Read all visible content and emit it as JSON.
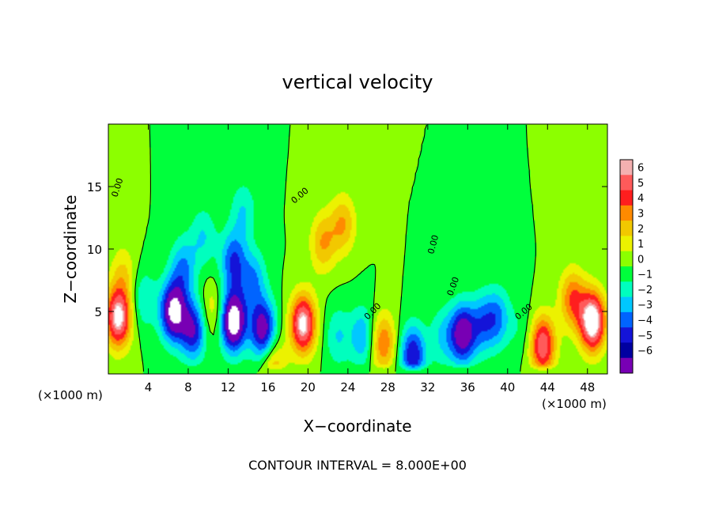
{
  "chart_data": {
    "type": "heatmap",
    "title": "vertical velocity",
    "xlabel": "X−coordinate",
    "ylabel": "Z−coordinate",
    "x_unit_left": "(×1000 m)",
    "x_unit_right": "(×1000 m)",
    "xlim": [
      0,
      50
    ],
    "ylim": [
      0,
      20
    ],
    "x_ticks": [
      4,
      8,
      12,
      16,
      20,
      24,
      28,
      32,
      36,
      40,
      44,
      48
    ],
    "y_ticks": [
      5,
      10,
      15
    ],
    "colorbar": {
      "levels": [
        6,
        5,
        4,
        3,
        2,
        1,
        0,
        -1,
        -2,
        -3,
        -4,
        -5,
        -6
      ],
      "labels": [
        "6",
        "5",
        "4",
        "3",
        "2",
        "1",
        "0",
        "−1",
        "−2",
        "−3",
        "−4",
        "−5",
        "−6"
      ],
      "colors": [
        "#f4b0b0",
        "#ff5a5a",
        "#ff1e1e",
        "#ff8a00",
        "#f2c800",
        "#ecf200",
        "#8cff00",
        "#00ff3c",
        "#00ffbe",
        "#00c8ff",
        "#0064ff",
        "#1414d8",
        "#0000a0",
        "#7800b4"
      ]
    },
    "zero_contour_label": "0.00",
    "footer": "CONTOUR INTERVAL = 8.000E+00",
    "features": [
      {
        "x": 1.0,
        "z": 4.5,
        "w": 7
      },
      {
        "x": 1.5,
        "z": 8.0,
        "w": 2
      },
      {
        "x": 3.5,
        "z": 6.0,
        "w": -2
      },
      {
        "x": 6.5,
        "z": 5.0,
        "w": -7
      },
      {
        "x": 7.5,
        "z": 8.5,
        "w": -3
      },
      {
        "x": 8.5,
        "z": 3.5,
        "w": -5
      },
      {
        "x": 9.5,
        "z": 11.0,
        "w": -2
      },
      {
        "x": 10.5,
        "z": 5.0,
        "w": 2
      },
      {
        "x": 12.5,
        "z": 4.2,
        "w": -8
      },
      {
        "x": 12.5,
        "z": 9.0,
        "w": -4
      },
      {
        "x": 13.5,
        "z": 13.0,
        "w": -2
      },
      {
        "x": 14.5,
        "z": 7.5,
        "w": -3
      },
      {
        "x": 15.5,
        "z": 3.5,
        "w": -6
      },
      {
        "x": 16.5,
        "z": 0.6,
        "w": 3
      },
      {
        "x": 19.5,
        "z": 4.0,
        "w": 7
      },
      {
        "x": 21.5,
        "z": 10.5,
        "w": 3
      },
      {
        "x": 23.5,
        "z": 12.0,
        "w": 3
      },
      {
        "x": 23.0,
        "z": 3.0,
        "w": -2
      },
      {
        "x": 25.5,
        "z": 3.0,
        "w": -3
      },
      {
        "x": 27.5,
        "z": 2.5,
        "w": 4
      },
      {
        "x": 30.5,
        "z": 1.5,
        "w": -5
      },
      {
        "x": 33.5,
        "z": 3.0,
        "w": -2
      },
      {
        "x": 35.5,
        "z": 3.2,
        "w": -6
      },
      {
        "x": 37.5,
        "z": 4.0,
        "w": -3
      },
      {
        "x": 39.0,
        "z": 4.5,
        "w": -3
      },
      {
        "x": 41.5,
        "z": 3.5,
        "w": -1
      },
      {
        "x": 43.5,
        "z": 2.3,
        "w": 6
      },
      {
        "x": 46.5,
        "z": 6.0,
        "w": 4
      },
      {
        "x": 48.5,
        "z": 4.2,
        "w": 8
      }
    ]
  }
}
